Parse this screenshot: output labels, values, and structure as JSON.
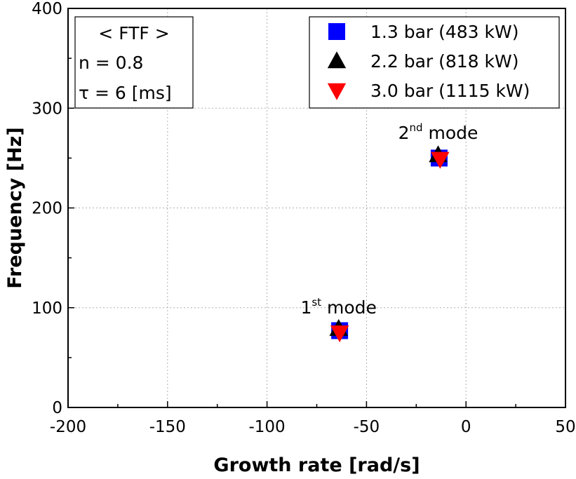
{
  "chart_data": {
    "type": "scatter",
    "xlabel": "Growth rate [rad/s]",
    "ylabel": "Frequency [Hz]",
    "xlim": [
      -200,
      50
    ],
    "ylim": [
      0,
      400
    ],
    "xticks": [
      -200,
      -150,
      -100,
      -50,
      0,
      50
    ],
    "yticks": [
      0,
      100,
      200,
      300,
      400
    ],
    "xtick_labels": [
      "-200",
      "-150",
      "-100",
      "-50",
      "0",
      "50"
    ],
    "ytick_labels": [
      "0",
      "100",
      "200",
      "300",
      "400"
    ],
    "grid": true,
    "legend_position": "top-right",
    "series": [
      {
        "name": "1.3 bar (483 kW)",
        "marker": "square",
        "color": "#0000ff",
        "x": [
          -63.5,
          -13.5
        ],
        "y": [
          77,
          250
        ]
      },
      {
        "name": "2.2 bar (818 kW)",
        "marker": "triangle-up",
        "color": "#000000",
        "x": [
          -64,
          -14
        ],
        "y": [
          79,
          253
        ]
      },
      {
        "name": "3.0 bar (1115 kW)",
        "marker": "triangle-down",
        "color": "#ff0000",
        "x": [
          -63.5,
          -13
        ],
        "y": [
          75,
          249
        ]
      }
    ],
    "info_box": {
      "lines": [
        "< FTF >",
        "n = 0.8",
        "τ = 6 [ms]"
      ]
    },
    "annotations": [
      {
        "base": "1",
        "sup": "st",
        "text": " mode",
        "x": -64,
        "y": 100
      },
      {
        "base": "2",
        "sup": "nd",
        "text": " mode",
        "x": -14,
        "y": 275
      }
    ]
  }
}
